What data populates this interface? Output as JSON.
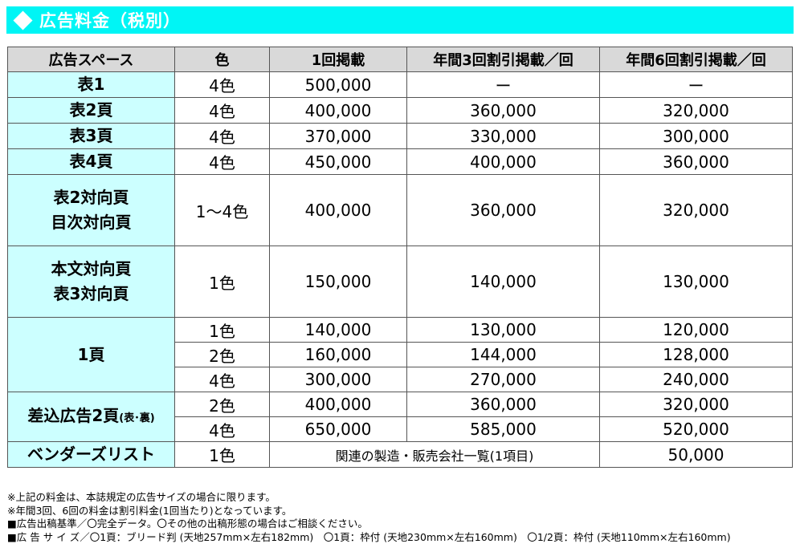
{
  "header": {
    "title": "広告料金（税別）"
  },
  "columns": [
    "広告スペース",
    "色",
    "1回掲載",
    "年間3回割引掲載／回",
    "年間6回割引掲載／回"
  ],
  "rows": [
    {
      "space": "表1",
      "color": "4色",
      "once": "500,000",
      "x3": "ー",
      "x6": "ー"
    },
    {
      "space": "表2頁",
      "color": "4色",
      "once": "400,000",
      "x3": "360,000",
      "x6": "320,000"
    },
    {
      "space": "表3頁",
      "color": "4色",
      "once": "370,000",
      "x3": "330,000",
      "x6": "300,000"
    },
    {
      "space": "表4頁",
      "color": "4色",
      "once": "450,000",
      "x3": "400,000",
      "x6": "360,000"
    },
    {
      "space_line1": "表2対向頁",
      "space_line2": "目次対向頁",
      "color": "1～4色",
      "once": "400,000",
      "x3": "360,000",
      "x6": "320,000"
    },
    {
      "space_line1": "本文対向頁",
      "space_line2": "表3対向頁",
      "color": "1色",
      "once": "150,000",
      "x3": "140,000",
      "x6": "130,000"
    }
  ],
  "page1": {
    "space": "1頁",
    "rows": [
      {
        "color": "1色",
        "once": "140,000",
        "x3": "130,000",
        "x6": "120,000"
      },
      {
        "color": "2色",
        "once": "160,000",
        "x3": "144,000",
        "x6": "128,000"
      },
      {
        "color": "4色",
        "once": "300,000",
        "x3": "270,000",
        "x6": "240,000"
      }
    ]
  },
  "insert": {
    "space": "差込広告2頁",
    "space_suffix": "(表･裏)",
    "rows": [
      {
        "color": "2色",
        "once": "400,000",
        "x3": "360,000",
        "x6": "320,000"
      },
      {
        "color": "4色",
        "once": "650,000",
        "x3": "585,000",
        "x6": "520,000"
      }
    ]
  },
  "vendor": {
    "space": "ベンダーズリスト",
    "color": "1色",
    "desc": "関連の製造・販売会社一覧(1項目)",
    "price": "50,000"
  },
  "notes": [
    "※上記の料金は、本誌規定の広告サイズの場合に限ります。",
    "※年間3回、6回の料金は割引料金(1回当たり)となっています。",
    "■広告出稿基準／〇完全データ。〇その他の出稿形態の場合はご相談ください。",
    "■広 告 サ イ ズ／〇1頁：ブリード判 (天地257mm×左右182mm)　〇1頁：枠付 (天地230mm×左右160mm)　〇1/2頁：枠付 (天地110mm×左右160mm)"
  ]
}
